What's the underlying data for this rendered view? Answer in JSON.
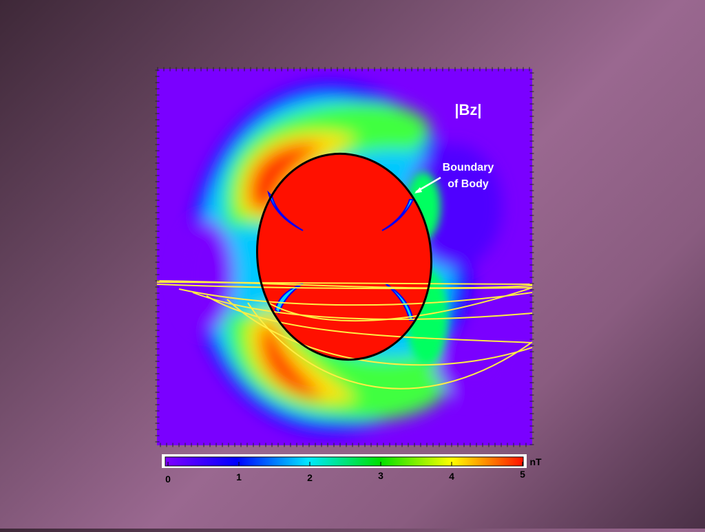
{
  "plot": {
    "title": "|Bz|",
    "annotation": [
      "Boundary",
      "of Body"
    ]
  },
  "colorbar": {
    "unit": "nT",
    "lim": [
      0,
      5
    ],
    "ticks": [
      0,
      1,
      2,
      3,
      4,
      5
    ]
  }
}
